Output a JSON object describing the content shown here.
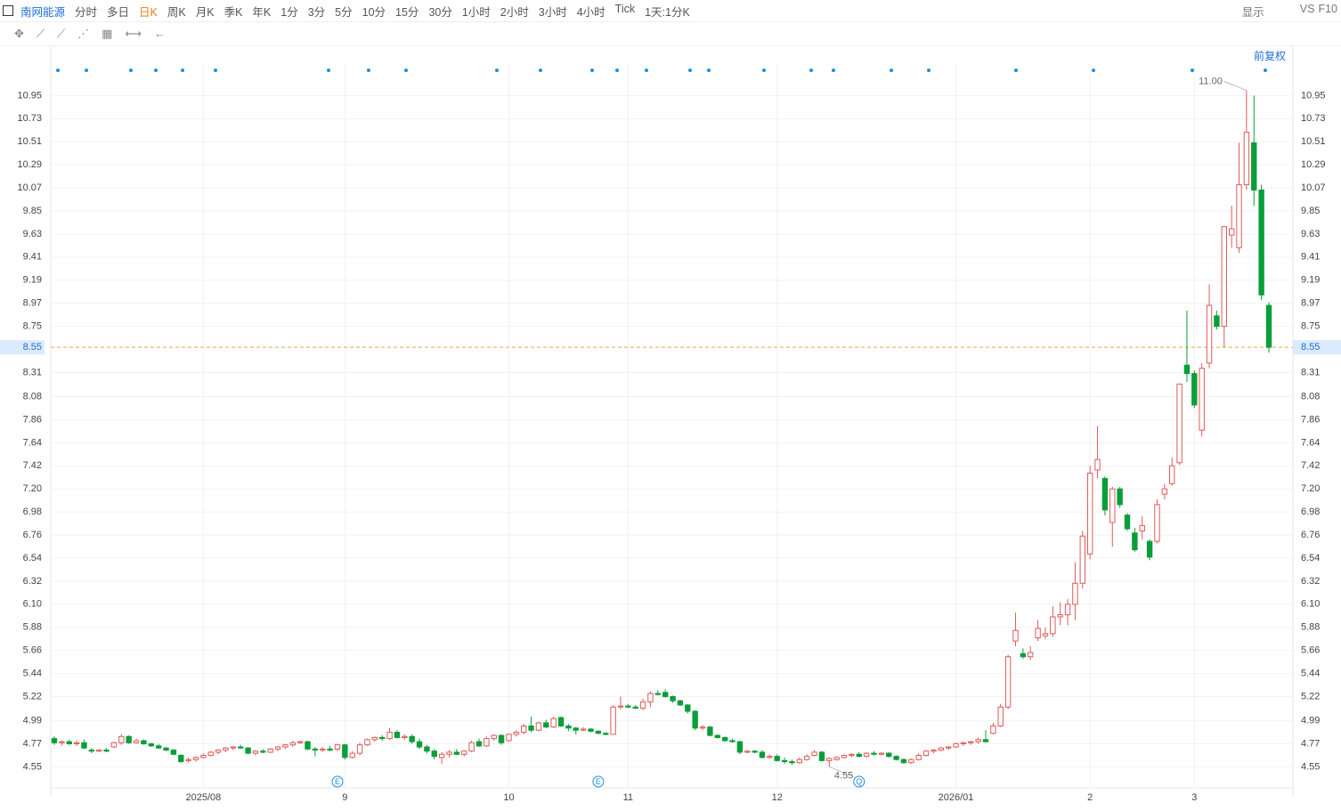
{
  "chart_data": {
    "type": "candlestick",
    "stock": "南网能源",
    "toolbar": [
      "分时",
      "多日",
      "日K",
      "周K",
      "月K",
      "季K",
      "年K",
      "1分",
      "3分",
      "5分",
      "10分",
      "15分",
      "30分",
      "1小时",
      "2小时",
      "3小时",
      "4小时",
      "Tick",
      "1天:1分K"
    ],
    "active_period": "日K",
    "right_tools": [
      "显示",
      "VS",
      "F10"
    ],
    "adjust": "前复权",
    "up_color": "#e05a5a",
    "down_color": "#0a9e3a",
    "grid": true,
    "ylim": [
      4.35,
      11.42
    ],
    "yticks": [
      4.55,
      4.77,
      4.99,
      5.22,
      5.44,
      5.66,
      5.88,
      {
        "value": 6.1,
        "label": "6.10"
      },
      6.32,
      6.54,
      6.76,
      6.98,
      {
        "value": 7.2,
        "label": "7.20"
      },
      7.42,
      7.64,
      7.86,
      8.08,
      8.31,
      8.75,
      8.97,
      9.19,
      9.41,
      9.63,
      9.85,
      10.07,
      10.29,
      10.51,
      10.73,
      10.95
    ],
    "last_price": {
      "value": 8.55,
      "label": "8.55"
    },
    "annotations": [
      {
        "text": "11.00",
        "index": 160,
        "value": 11.0
      },
      {
        "text": "4.55",
        "index": 104,
        "value": 4.55
      }
    ],
    "events": [
      {
        "text": "E",
        "index": 38
      },
      {
        "text": "E",
        "index": 73
      },
      {
        "text": "Q",
        "index": 108
      }
    ],
    "categories": [
      null,
      null,
      null,
      null,
      null,
      null,
      null,
      null,
      null,
      null,
      null,
      null,
      null,
      null,
      null,
      null,
      null,
      null,
      null,
      null,
      "2025/08",
      null,
      null,
      null,
      null,
      null,
      null,
      null,
      null,
      null,
      null,
      null,
      null,
      null,
      null,
      null,
      null,
      null,
      null,
      "9",
      null,
      null,
      null,
      null,
      null,
      null,
      null,
      null,
      null,
      null,
      null,
      null,
      null,
      null,
      null,
      null,
      null,
      null,
      null,
      null,
      null,
      "10",
      null,
      null,
      null,
      null,
      null,
      null,
      null,
      null,
      null,
      null,
      null,
      null,
      null,
      null,
      null,
      "11",
      null,
      null,
      null,
      null,
      null,
      null,
      null,
      null,
      null,
      null,
      null,
      null,
      null,
      null,
      null,
      null,
      null,
      null,
      null,
      "12",
      null,
      null,
      null,
      null,
      null,
      null,
      null,
      null,
      null,
      null,
      null,
      null,
      null,
      null,
      null,
      null,
      null,
      null,
      null,
      null,
      null,
      null,
      null,
      "2026/01",
      null,
      null,
      null,
      null,
      null,
      null,
      null,
      null,
      null,
      null,
      null,
      null,
      null,
      null,
      null,
      null,
      null,
      "2",
      null,
      null,
      null,
      null,
      null,
      null,
      null,
      null,
      null,
      null,
      null,
      null,
      null,
      "3",
      null,
      null,
      null,
      null,
      null,
      null,
      null,
      null,
      null,
      null
    ],
    "candles": [
      [
        4.82,
        4.84,
        4.76,
        4.78
      ],
      [
        4.78,
        4.8,
        4.75,
        4.79
      ],
      [
        4.79,
        4.81,
        4.76,
        4.77
      ],
      [
        4.77,
        4.8,
        4.75,
        4.78
      ],
      [
        4.78,
        4.81,
        4.72,
        4.73
      ],
      [
        4.71,
        4.73,
        4.68,
        4.7
      ],
      [
        4.7,
        4.72,
        4.69,
        4.71
      ],
      [
        4.71,
        4.73,
        4.69,
        4.7
      ],
      [
        4.74,
        4.79,
        4.73,
        4.78
      ],
      [
        4.78,
        4.86,
        4.76,
        4.84
      ],
      [
        4.84,
        4.85,
        4.77,
        4.78
      ],
      [
        4.78,
        4.82,
        4.77,
        4.8
      ],
      [
        4.8,
        4.81,
        4.76,
        4.77
      ],
      [
        4.77,
        4.78,
        4.74,
        4.75
      ],
      [
        4.75,
        4.77,
        4.72,
        4.73
      ],
      [
        4.73,
        4.74,
        4.7,
        4.71
      ],
      [
        4.71,
        4.72,
        4.66,
        4.67
      ],
      [
        4.66,
        4.67,
        4.59,
        4.6
      ],
      [
        4.61,
        4.64,
        4.59,
        4.62
      ],
      [
        4.62,
        4.65,
        4.6,
        4.64
      ],
      [
        4.64,
        4.68,
        4.63,
        4.66
      ],
      [
        4.66,
        4.7,
        4.65,
        4.69
      ],
      [
        4.69,
        4.72,
        4.67,
        4.71
      ],
      [
        4.71,
        4.74,
        4.69,
        4.73
      ],
      [
        4.73,
        4.75,
        4.71,
        4.74
      ],
      [
        4.74,
        4.76,
        4.72,
        4.73
      ],
      [
        4.73,
        4.74,
        4.67,
        4.68
      ],
      [
        4.68,
        4.71,
        4.66,
        4.7
      ],
      [
        4.7,
        4.72,
        4.68,
        4.69
      ],
      [
        4.69,
        4.73,
        4.68,
        4.72
      ],
      [
        4.72,
        4.75,
        4.7,
        4.74
      ],
      [
        4.74,
        4.77,
        4.72,
        4.76
      ],
      [
        4.76,
        4.8,
        4.74,
        4.78
      ],
      [
        4.78,
        4.8,
        4.77,
        4.79
      ],
      [
        4.79,
        4.8,
        4.71,
        4.72
      ],
      [
        4.72,
        4.74,
        4.65,
        4.71
      ],
      [
        4.71,
        4.74,
        4.69,
        4.72
      ],
      [
        4.72,
        4.75,
        4.7,
        4.71
      ],
      [
        4.72,
        4.77,
        4.7,
        4.76
      ],
      [
        4.76,
        4.77,
        4.62,
        4.64
      ],
      [
        4.64,
        4.7,
        4.63,
        4.68
      ],
      [
        4.68,
        4.78,
        4.66,
        4.76
      ],
      [
        4.76,
        4.82,
        4.75,
        4.81
      ],
      [
        4.81,
        4.84,
        4.79,
        4.83
      ],
      [
        4.83,
        4.85,
        4.8,
        4.82
      ],
      [
        4.82,
        4.92,
        4.81,
        4.88
      ],
      [
        4.88,
        4.9,
        4.82,
        4.83
      ],
      [
        4.83,
        4.86,
        4.81,
        4.84
      ],
      [
        4.84,
        4.86,
        4.77,
        4.79
      ],
      [
        4.79,
        4.82,
        4.72,
        4.74
      ],
      [
        4.74,
        4.76,
        4.68,
        4.7
      ],
      [
        4.7,
        4.72,
        4.62,
        4.65
      ],
      [
        4.64,
        4.69,
        4.58,
        4.67
      ],
      [
        4.67,
        4.71,
        4.64,
        4.69
      ],
      [
        4.69,
        4.72,
        4.66,
        4.67
      ],
      [
        4.67,
        4.71,
        4.65,
        4.7
      ],
      [
        4.7,
        4.8,
        4.69,
        4.78
      ],
      [
        4.79,
        4.82,
        4.74,
        4.75
      ],
      [
        4.75,
        4.84,
        4.74,
        4.82
      ],
      [
        4.82,
        4.86,
        4.8,
        4.85
      ],
      [
        4.85,
        4.86,
        4.76,
        4.78
      ],
      [
        4.8,
        4.87,
        4.79,
        4.86
      ],
      [
        4.86,
        4.9,
        4.84,
        4.88
      ],
      [
        4.88,
        4.96,
        4.86,
        4.94
      ],
      [
        4.94,
        5.03,
        4.88,
        4.9
      ],
      [
        4.9,
        4.98,
        4.89,
        4.97
      ],
      [
        4.97,
        5.0,
        4.92,
        4.93
      ],
      [
        4.93,
        5.03,
        4.92,
        5.01
      ],
      [
        5.02,
        5.03,
        4.93,
        4.94
      ],
      [
        4.94,
        4.96,
        4.89,
        4.92
      ],
      [
        4.92,
        4.93,
        4.86,
        4.9
      ],
      [
        4.9,
        4.93,
        4.89,
        4.91
      ],
      [
        4.91,
        4.92,
        4.88,
        4.89
      ],
      [
        4.89,
        4.9,
        4.86,
        4.87
      ],
      [
        4.87,
        4.88,
        4.85,
        4.86
      ],
      [
        4.86,
        5.14,
        4.86,
        5.12
      ],
      [
        5.12,
        5.22,
        5.1,
        5.13
      ],
      [
        5.13,
        5.15,
        5.11,
        5.12
      ],
      [
        5.12,
        5.14,
        5.1,
        5.11
      ],
      [
        5.11,
        5.2,
        5.09,
        5.17
      ],
      [
        5.17,
        5.27,
        5.12,
        5.25
      ],
      [
        5.25,
        5.28,
        5.23,
        5.24
      ],
      [
        5.26,
        5.29,
        5.21,
        5.22
      ],
      [
        5.22,
        5.23,
        5.16,
        5.18
      ],
      [
        5.18,
        5.19,
        5.13,
        5.14
      ],
      [
        5.14,
        5.15,
        5.06,
        5.08
      ],
      [
        5.08,
        5.09,
        4.9,
        4.92
      ],
      [
        4.92,
        4.95,
        4.9,
        4.93
      ],
      [
        4.93,
        4.94,
        4.84,
        4.85
      ],
      [
        4.85,
        4.86,
        4.82,
        4.83
      ],
      [
        4.83,
        4.84,
        4.79,
        4.8
      ],
      [
        4.8,
        4.82,
        4.78,
        4.79
      ],
      [
        4.79,
        4.8,
        4.67,
        4.69
      ],
      [
        4.69,
        4.71,
        4.68,
        4.7
      ],
      [
        4.7,
        4.71,
        4.68,
        4.69
      ],
      [
        4.69,
        4.71,
        4.63,
        4.64
      ],
      [
        4.64,
        4.67,
        4.63,
        4.65
      ],
      [
        4.65,
        4.67,
        4.6,
        4.61
      ],
      [
        4.61,
        4.64,
        4.58,
        4.6
      ],
      [
        4.6,
        4.62,
        4.57,
        4.59
      ],
      [
        4.59,
        4.64,
        4.58,
        4.62
      ],
      [
        4.62,
        4.67,
        4.61,
        4.65
      ],
      [
        4.66,
        4.71,
        4.65,
        4.69
      ],
      [
        4.69,
        4.7,
        4.6,
        4.61
      ],
      [
        4.61,
        4.64,
        4.55,
        4.63
      ],
      [
        4.62,
        4.65,
        4.61,
        4.64
      ],
      [
        4.64,
        4.67,
        4.63,
        4.66
      ],
      [
        4.66,
        4.68,
        4.64,
        4.67
      ],
      [
        4.67,
        4.69,
        4.64,
        4.65
      ],
      [
        4.65,
        4.69,
        4.64,
        4.68
      ],
      [
        4.68,
        4.7,
        4.66,
        4.67
      ],
      [
        4.67,
        4.69,
        4.66,
        4.68
      ],
      [
        4.68,
        4.69,
        4.64,
        4.65
      ],
      [
        4.65,
        4.66,
        4.61,
        4.62
      ],
      [
        4.62,
        4.63,
        4.58,
        4.59
      ],
      [
        4.59,
        4.63,
        4.58,
        4.62
      ],
      [
        4.62,
        4.68,
        4.61,
        4.66
      ],
      [
        4.66,
        4.71,
        4.65,
        4.7
      ],
      [
        4.7,
        4.72,
        4.68,
        4.71
      ],
      [
        4.71,
        4.74,
        4.7,
        4.73
      ],
      [
        4.73,
        4.75,
        4.71,
        4.74
      ],
      [
        4.74,
        4.78,
        4.73,
        4.77
      ],
      [
        4.77,
        4.79,
        4.75,
        4.78
      ],
      [
        4.78,
        4.8,
        4.76,
        4.79
      ],
      [
        4.79,
        4.83,
        4.77,
        4.81
      ],
      [
        4.81,
        4.9,
        4.78,
        4.79
      ],
      [
        4.87,
        4.97,
        4.86,
        4.94
      ],
      [
        4.94,
        5.15,
        4.93,
        5.12
      ],
      [
        5.12,
        5.62,
        5.1,
        5.6
      ],
      [
        5.75,
        6.02,
        5.7,
        5.85
      ],
      [
        5.63,
        5.68,
        5.58,
        5.6
      ],
      [
        5.6,
        5.7,
        5.57,
        5.64
      ],
      [
        5.78,
        5.95,
        5.75,
        5.87
      ],
      [
        5.8,
        5.88,
        5.77,
        5.82
      ],
      [
        5.82,
        6.08,
        5.79,
        5.98
      ],
      [
        5.98,
        6.12,
        5.9,
        6.0
      ],
      [
        6.0,
        6.15,
        5.9,
        6.1
      ],
      [
        6.1,
        6.5,
        5.95,
        6.3
      ],
      [
        6.3,
        6.8,
        6.25,
        6.75
      ],
      [
        6.58,
        7.42,
        6.53,
        7.35
      ],
      [
        7.38,
        7.8,
        7.3,
        7.48
      ],
      [
        7.3,
        7.32,
        6.95,
        7.0
      ],
      [
        6.88,
        7.22,
        6.65,
        7.2
      ],
      [
        7.2,
        7.22,
        7.02,
        7.05
      ],
      [
        6.95,
        6.97,
        6.8,
        6.82
      ],
      [
        6.78,
        6.83,
        6.6,
        6.62
      ],
      [
        6.8,
        6.94,
        6.72,
        6.85
      ],
      [
        6.7,
        6.72,
        6.52,
        6.55
      ],
      [
        6.7,
        7.1,
        6.68,
        7.05
      ],
      [
        7.15,
        7.25,
        7.1,
        7.2
      ],
      [
        7.25,
        7.5,
        7.23,
        7.42
      ],
      [
        7.45,
        8.2,
        7.43,
        8.2
      ],
      [
        8.38,
        8.9,
        8.22,
        8.3
      ],
      [
        8.3,
        8.33,
        7.97,
        8.0
      ],
      [
        7.76,
        8.4,
        7.7,
        8.35
      ],
      [
        8.4,
        9.15,
        8.35,
        8.95
      ],
      [
        8.85,
        8.9,
        8.72,
        8.75
      ],
      [
        8.75,
        9.7,
        8.55,
        9.7
      ],
      [
        9.62,
        9.9,
        9.5,
        9.68
      ],
      [
        9.5,
        10.5,
        9.45,
        10.1
      ],
      [
        10.1,
        11.0,
        10.05,
        10.6
      ],
      [
        10.5,
        10.95,
        9.9,
        10.05
      ],
      [
        10.05,
        10.1,
        9.0,
        9.05
      ],
      [
        8.95,
        8.98,
        8.5,
        8.55
      ]
    ]
  }
}
